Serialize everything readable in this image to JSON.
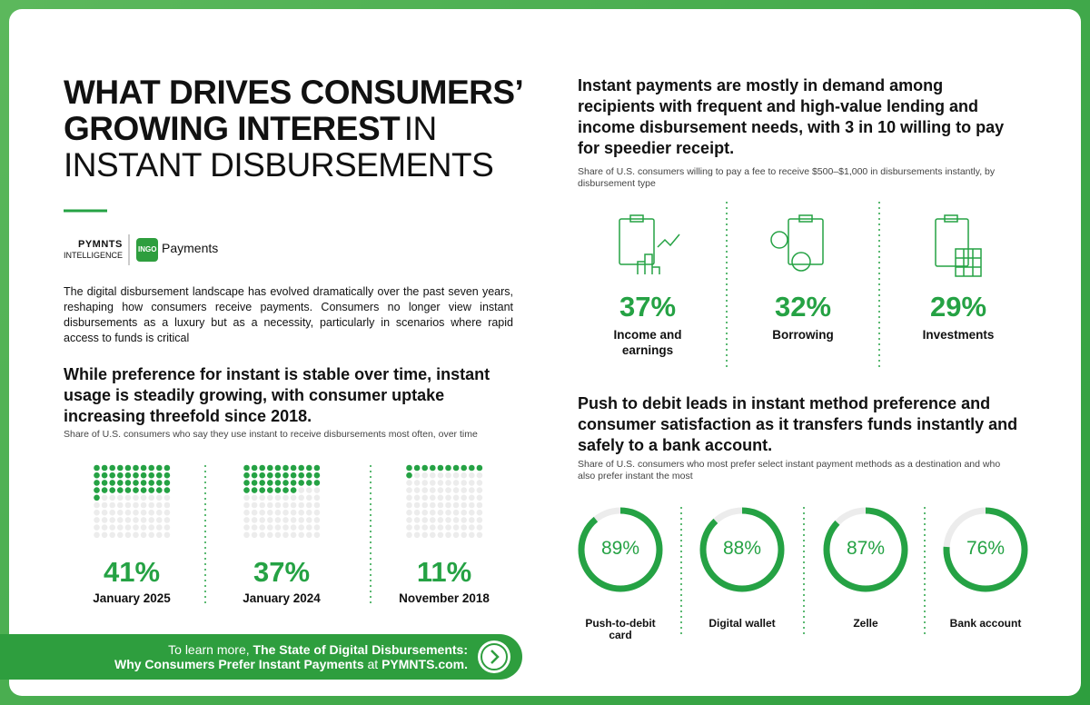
{
  "header": {
    "title": {
      "line1": "WHAT DRIVES CONSUMERS’",
      "line2_bold": "GROWING INTEREST",
      "line2_regular": "IN",
      "line3": "INSTANT DISBURSEMENTS"
    },
    "logos": {
      "pymnts": "PYMNTS",
      "intelligence": "INTELLIGENCE",
      "ingo": "INGO",
      "payments": "Payments"
    }
  },
  "intro": "The digital disbursement landscape has evolved dramatically over the past seven years, reshaping how consumers receive payments. Consumers no longer view instant disbursements as a luxury but as a necessity, particularly in scenarios where rapid access to funds is critical",
  "section_usage": {
    "heading": "While preference for instant is stable over time, instant usage is steadily growing, with consumer uptake increasing threefold since 2018.",
    "subtitle": "Share of U.S. consumers who say they use instant to receive disbursements most often, over time",
    "items": [
      {
        "value": 41,
        "value_label": "41%",
        "label": "January 2025"
      },
      {
        "value": 37,
        "value_label": "37%",
        "label": "January 2024"
      },
      {
        "value": 11,
        "value_label": "11%",
        "label": "November 2018"
      }
    ]
  },
  "section_fee": {
    "heading": "Instant payments are mostly in demand among recipients with frequent and high-value lending and income disbursement needs, with 3 in 10 willing to pay for speedier receipt.",
    "subtitle": "Share of U.S. consumers willing to pay a fee to receive $500–$1,000 in disbursements instantly, by disbursement type",
    "items": [
      {
        "percent": "37%",
        "label": "Income and earnings"
      },
      {
        "percent": "32%",
        "label": "Borrowing"
      },
      {
        "percent": "29%",
        "label": "Investments"
      }
    ]
  },
  "section_methods": {
    "heading": "Push to debit leads in instant method preference and consumer satisfaction as it transfers funds instantly and safely to a bank account.",
    "subtitle": "Share of U.S. consumers who most prefer select instant payment methods as a destination and who also prefer instant the most",
    "items": [
      {
        "value": 89,
        "value_label": "89%",
        "label": "Push-to-debit card"
      },
      {
        "value": 88,
        "value_label": "88%",
        "label": "Digital wallet"
      },
      {
        "value": 87,
        "value_label": "87%",
        "label": "Zelle"
      },
      {
        "value": 76,
        "value_label": "76%",
        "label": "Bank account"
      }
    ]
  },
  "cta": {
    "lead": "To learn more,",
    "report": "The State of Digital Disbursements:",
    "report_sub": "Why Consumers Prefer Instant Payments",
    "at": "at",
    "site": "PYMNTS.com."
  }
}
